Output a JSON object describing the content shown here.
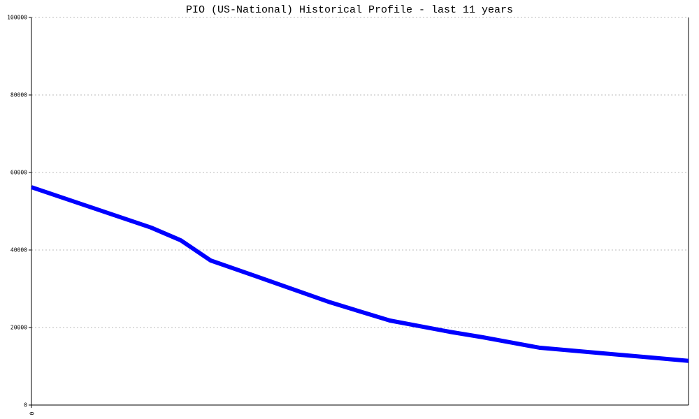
{
  "chart_data": {
    "type": "line",
    "title": "PIO (US-National) Historical Profile - last 11 years",
    "x": [
      0,
      1.0,
      2.0,
      2.5,
      3.0,
      3.8,
      5.0,
      6.0,
      7.0,
      7.55,
      8.5,
      11.0
    ],
    "series": [
      {
        "color": "#0000ff",
        "values": [
          56200,
          51000,
          45800,
          42500,
          37300,
          33000,
          26500,
          21800,
          18900,
          17500,
          14800,
          11400
        ]
      }
    ],
    "xlim": [
      0,
      11
    ],
    "xticks": [
      0
    ],
    "ylim": [
      0,
      100000
    ],
    "yticks": [
      0,
      20000,
      40000,
      60000,
      80000,
      100000
    ],
    "grid": true
  }
}
